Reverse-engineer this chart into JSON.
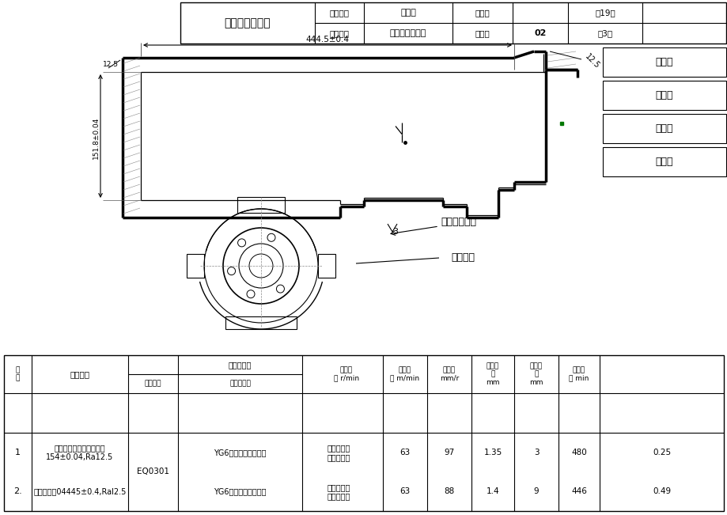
{
  "title": "机械加工工序卡",
  "part_name_label": "零件名称",
  "part_name": "飞轮壳",
  "coolant_label": "切削液",
  "total_pages": "共19页",
  "process_name_label": "工序名称",
  "process_name": "粗车端面、内孔",
  "process_num_label": "工序号",
  "process_number": "02",
  "page_number": "第3页",
  "right_labels": [
    "设　计",
    "校　对",
    "修　改",
    "审　核"
  ],
  "machine_fixture_label": "机床夹具名称",
  "fixture_name": "专用夹具",
  "dim_horizontal": "444.5±0.4",
  "dim_ra_top": "12.5",
  "dim_ra_left": "12.5",
  "dim_vertical": "151.8±0.04",
  "dim_3": "3",
  "header_seq": "序\n号",
  "header_content": "工序内容",
  "header_equipment": "设备型号",
  "header_tool": "刀辅具名称",
  "header_gauge": "量检具名称",
  "header_spindle": "主轴转\n速 r/min",
  "header_cutting": "切削速\n度 m/min",
  "header_feed": "进给量\nmm/r",
  "header_depth": "切削深\n度\nmm",
  "header_length": "切削长\n度\nmm",
  "header_time": "基本时\n间 min",
  "equipment_shared": "EQ0301",
  "rows": [
    {
      "seq": "1",
      "content": "粗车端面保证至顶面尺寸\n154±0.04,Ra12.5",
      "tool": "YG6硬质合金端面车刀",
      "gauge": "高度卡尺，\n粗糙度样块",
      "spindle_speed": "63",
      "cutting_speed": "97",
      "feed": "1.35",
      "depth": "3",
      "length": "480",
      "time": "0.25"
    },
    {
      "seq": "2.",
      "content": "粗车内孔至04445±0.4,Ral2.5",
      "tool": "YG6硬质合金内圆车刀",
      "gauge": "内孔检具，\n粗糙度样块",
      "spindle_speed": "63",
      "cutting_speed": "88",
      "feed": "1.4",
      "depth": "9",
      "length": "446",
      "time": "0.49"
    }
  ],
  "bg_color": "#ffffff",
  "line_color": "#000000",
  "green_color": "#007700"
}
